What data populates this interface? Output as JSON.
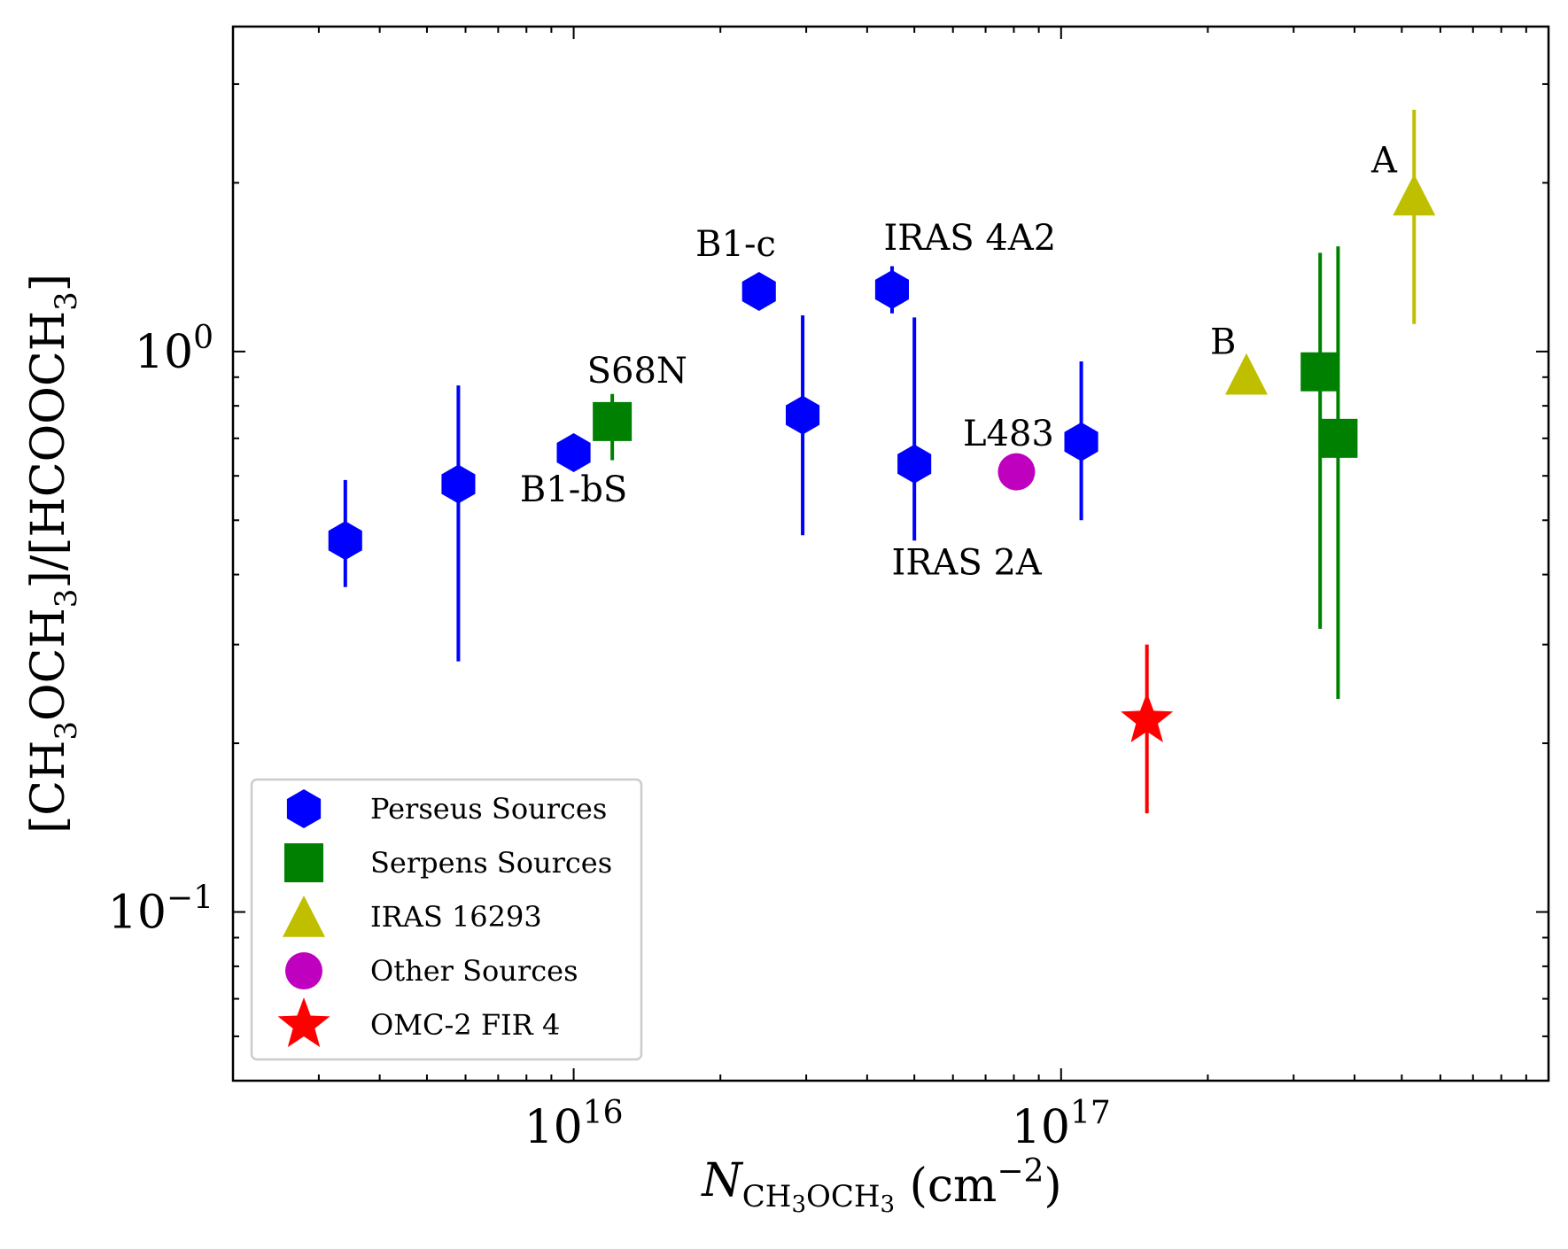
{
  "chart_data": {
    "type": "scatter",
    "x_scale": "log",
    "y_scale": "log",
    "xlim": [
      2000000000000000.0,
      1e+18
    ],
    "ylim": [
      0.05,
      3.8
    ],
    "x_major_ticks": [
      {
        "value": 1e+16,
        "base": "10",
        "exp": "16"
      },
      {
        "value": 1e+17,
        "base": "10",
        "exp": "17"
      }
    ],
    "y_major_ticks": [
      {
        "value": 1.0,
        "base": "10",
        "exp": "0"
      },
      {
        "value": 0.1,
        "base": "10",
        "exp": "−1"
      }
    ],
    "xlabel": {
      "italic": "N",
      "sub": "CH",
      "sub2": "3",
      "sub3": "OCH",
      "sub4": "3",
      "rest": " (cm",
      "sup": "−2",
      "end": ")"
    },
    "ylabel": {
      "p1": "[CH",
      "s1": "3",
      "p2": "OCH",
      "s2": "3",
      "p3": "]/[HCOOCH",
      "s3": "3",
      "p4": "]"
    },
    "legend_position": "lower-left",
    "series": [
      {
        "name": "Perseus Sources",
        "marker": "hexagon",
        "color": "#0000ff",
        "points": [
          {
            "x": 3400000000000000.0,
            "y": 0.46,
            "ylo": 0.38,
            "yhi": 0.59
          },
          {
            "x": 5800000000000000.0,
            "y": 0.58,
            "ylo": 0.28,
            "yhi": 0.87
          },
          {
            "x": 1e+16,
            "y": 0.66,
            "ylo": null,
            "yhi": null
          },
          {
            "x": 2.4e+16,
            "y": 1.28,
            "ylo": null,
            "yhi": null
          },
          {
            "x": 2.95e+16,
            "y": 0.77,
            "ylo": 0.47,
            "yhi": 1.16
          },
          {
            "x": 4.5e+16,
            "y": 1.29,
            "ylo": 1.17,
            "yhi": 1.42
          },
          {
            "x": 5e+16,
            "y": 0.63,
            "ylo": 0.46,
            "yhi": 1.15
          },
          {
            "x": 1.1e+17,
            "y": 0.69,
            "ylo": 0.5,
            "yhi": 0.96
          }
        ]
      },
      {
        "name": "Serpens Sources",
        "marker": "square",
        "color": "#008000",
        "points": [
          {
            "x": 1.2e+16,
            "y": 0.75,
            "ylo": 0.64,
            "yhi": 0.84
          },
          {
            "x": 3.4e+17,
            "y": 0.92,
            "ylo": 0.32,
            "yhi": 1.5
          },
          {
            "x": 3.7e+17,
            "y": 0.7,
            "ylo": 0.24,
            "yhi": 1.54
          }
        ]
      },
      {
        "name": "IRAS 16293",
        "marker": "triangle",
        "color": "#bfbf00",
        "points": [
          {
            "x": 2.4e+17,
            "y": 0.91,
            "ylo": null,
            "yhi": null
          },
          {
            "x": 5.3e+17,
            "y": 1.9,
            "ylo": 1.12,
            "yhi": 2.7
          }
        ]
      },
      {
        "name": "Other Sources",
        "marker": "circle",
        "color": "#bf00bf",
        "points": [
          {
            "x": 8.1e+16,
            "y": 0.61,
            "ylo": null,
            "yhi": null
          }
        ]
      },
      {
        "name": "OMC-2 FIR 4",
        "marker": "star",
        "color": "#ff0000",
        "points": [
          {
            "x": 1.5e+17,
            "y": 0.22,
            "ylo": 0.15,
            "yhi": 0.3
          }
        ]
      }
    ],
    "annotations": [
      {
        "text": "S68N",
        "x": 1.35e+16,
        "y": 0.88
      },
      {
        "text": "B1-bS",
        "x": 1e+16,
        "y": 0.54
      },
      {
        "text": "B1-c",
        "x": 2.15e+16,
        "y": 1.48
      },
      {
        "text": "IRAS 4A2",
        "x": 6.5e+16,
        "y": 1.52
      },
      {
        "text": "IRAS 2A",
        "x": 6.4e+16,
        "y": 0.4
      },
      {
        "text": "L483",
        "x": 7.8e+16,
        "y": 0.68
      },
      {
        "text": "B",
        "x": 2.15e+17,
        "y": 0.99
      },
      {
        "text": "A",
        "x": 4.6e+17,
        "y": 2.09
      }
    ]
  }
}
